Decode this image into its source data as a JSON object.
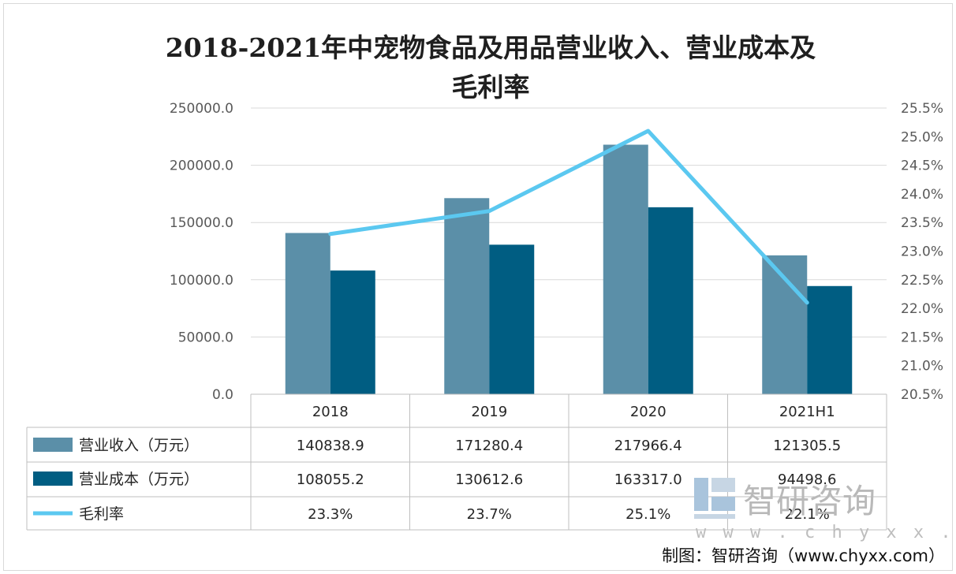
{
  "chart_data": {
    "type": "bar",
    "title_line1": "2018-2021年中宠物食品及用品营业收入、营业成本及",
    "title_line2": "毛利率",
    "categories": [
      "2018",
      "2019",
      "2020",
      "2021H1"
    ],
    "series": [
      {
        "name": "营业收入（万元）",
        "kind": "bar",
        "color": "#5b8fa8",
        "values": [
          140838.9,
          171280.4,
          217966.4,
          121305.5
        ],
        "labels": [
          "140838.9",
          "171280.4",
          "217966.4",
          "121305.5"
        ]
      },
      {
        "name": "营业成本（万元）",
        "kind": "bar",
        "color": "#005d82",
        "values": [
          108055.2,
          130612.6,
          163317.0,
          94498.6
        ],
        "labels": [
          "108055.2",
          "130612.6",
          "163317.0",
          "94498.6"
        ]
      },
      {
        "name": "毛利率",
        "kind": "line",
        "axis": "right",
        "color": "#5bc8f0",
        "values": [
          23.3,
          23.7,
          25.1,
          22.1
        ],
        "labels": [
          "23.3%",
          "23.7%",
          "25.1%",
          "22.1%"
        ]
      }
    ],
    "y_left": {
      "min": 0,
      "max": 250000,
      "ticks": [
        "250000.0",
        "200000.0",
        "150000.0",
        "100000.0",
        "50000.0",
        "0.0"
      ]
    },
    "y_right": {
      "min": 20.5,
      "max": 25.5,
      "ticks": [
        "25.5%",
        "25.0%",
        "24.5%",
        "24.0%",
        "23.5%",
        "23.0%",
        "22.5%",
        "22.0%",
        "21.5%",
        "21.0%",
        "20.5%"
      ]
    },
    "grid": true,
    "legend": "data-table"
  },
  "watermark": {
    "brand": "智研咨询",
    "url": "w w w . c h y x x . c o m"
  },
  "credit": "制图：智研咨询（www.chyxx.com）"
}
